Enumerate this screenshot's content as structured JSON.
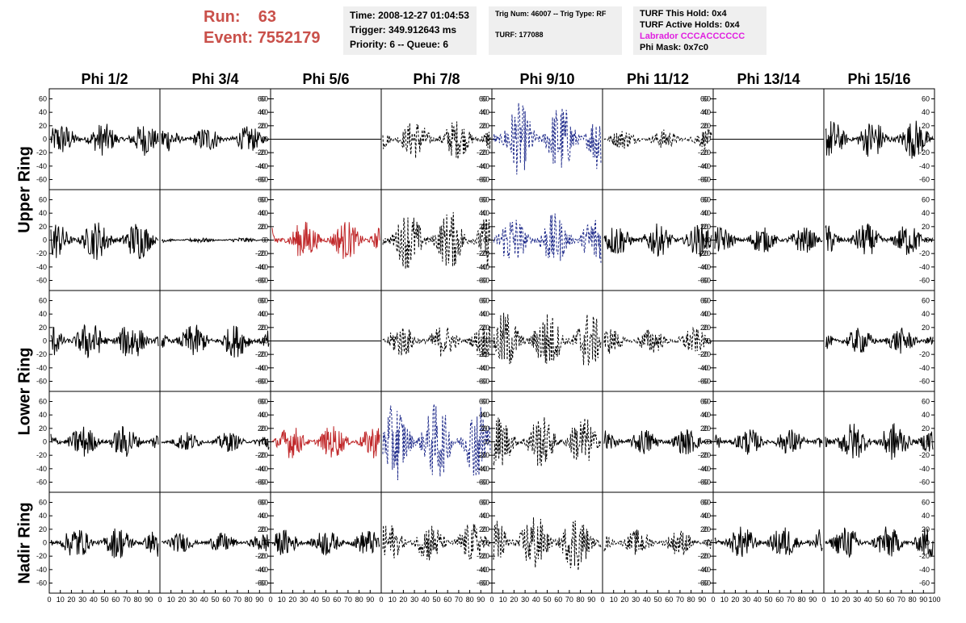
{
  "header": {
    "run_label": "Run:",
    "run_value": "63",
    "event_label": "Event:",
    "event_value": "7552179",
    "time": "Time: 2008-12-27 01:04:53",
    "trigger": "Trigger: 349.912643 ms",
    "priority": "Priority: 6 -- Queue: 6",
    "trig_num": "Trig Num: 46007 -- Trig Type: RF",
    "turf": "TURF: 177088",
    "turf_hold": "TURF This Hold: 0x4",
    "turf_active": "TURF Active Holds: 0x4",
    "labrador": "Labrador CCCACCCCCC",
    "phi_mask": "Phi Mask: 0x7c0",
    "labrador_color": "#e020e0",
    "run_color": "#c9504a"
  },
  "columns": [
    "Phi 1/2",
    "Phi 3/4",
    "Phi 5/6",
    "Phi 7/8",
    "Phi 9/10",
    "Phi 11/12",
    "Phi 13/14",
    "Phi 15/16"
  ],
  "row_labels": [
    {
      "label": "Upper Ring",
      "rows": [
        0,
        1
      ]
    },
    {
      "label": "Lower Ring",
      "rows": [
        2,
        3
      ]
    },
    {
      "label": "Nadir Ring",
      "rows": [
        4,
        4
      ]
    }
  ],
  "y_ticks": [
    "60",
    "40",
    "20",
    "0",
    "-20",
    "-40",
    "-60"
  ],
  "x_ticks": [
    "0",
    "10",
    "20",
    "30",
    "40",
    "50",
    "60",
    "70",
    "80",
    "90",
    "100"
  ],
  "chart_data": {
    "type": "line",
    "xlim": [
      0,
      100
    ],
    "ylim": [
      -75,
      75
    ],
    "legend": "none",
    "trace_colors": {
      "normal": "#000000",
      "dashed": "#000000",
      "red": "#c0282a",
      "blue": "#1e2a8a"
    },
    "panels": [
      [
        "normal",
        "normal",
        "flat",
        "dashed",
        "blue",
        "dashed",
        "flat",
        "normal"
      ],
      [
        "normal",
        "small",
        "red",
        "dashed",
        "blue",
        "normal",
        "normal",
        "normal"
      ],
      [
        "normal",
        "normal",
        "flat",
        "dashed",
        "dashed",
        "dashed",
        "flat",
        "normal"
      ],
      [
        "normal",
        "normal",
        "red",
        "blue",
        "dashed",
        "normal",
        "normal",
        "normal"
      ],
      [
        "normal",
        "normal",
        "normal",
        "dashed",
        "dashed",
        "dashed",
        "normal",
        "normal"
      ]
    ],
    "amplitudes": [
      [
        25,
        20,
        0,
        30,
        55,
        15,
        0,
        30
      ],
      [
        30,
        4,
        30,
        45,
        40,
        25,
        20,
        25
      ],
      [
        30,
        25,
        0,
        25,
        45,
        20,
        0,
        20
      ],
      [
        25,
        15,
        25,
        60,
        40,
        20,
        20,
        30
      ],
      [
        25,
        15,
        20,
        30,
        45,
        20,
        25,
        25
      ]
    ]
  }
}
